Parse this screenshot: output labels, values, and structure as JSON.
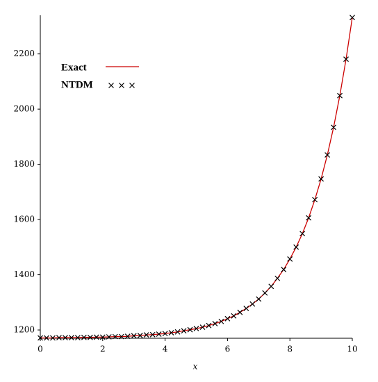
{
  "chart_data": {
    "type": "line",
    "xlabel": "x",
    "x": [
      0,
      0.2,
      0.4,
      0.6,
      0.8,
      1,
      1.2,
      1.4,
      1.6,
      1.8,
      2,
      2.2,
      2.4,
      2.6,
      2.8,
      3,
      3.2,
      3.4,
      3.6,
      3.8,
      4,
      4.2,
      4.4,
      4.6,
      4.8,
      5,
      5.2,
      5.4,
      5.6,
      5.8,
      6,
      6.2,
      6.4,
      6.6,
      6.8,
      7,
      7.2,
      7.4,
      7.6,
      7.8,
      8,
      8.2,
      8.4,
      8.6,
      8.8,
      9,
      9.2,
      9.4,
      9.6,
      9.8,
      10
    ],
    "series": [
      {
        "name": "Exact",
        "color": "#cc0000",
        "mark": "line",
        "values": [
          1171,
          1171,
          1171,
          1172,
          1172,
          1172,
          1172,
          1173,
          1173,
          1174,
          1174,
          1175,
          1176,
          1176,
          1177,
          1179,
          1180,
          1182,
          1183,
          1185,
          1187,
          1190,
          1193,
          1197,
          1201,
          1205,
          1210,
          1216,
          1223,
          1231,
          1241,
          1251,
          1264,
          1278,
          1294,
          1312,
          1334,
          1358,
          1387,
          1419,
          1457,
          1500,
          1549,
          1606,
          1672,
          1747,
          1834,
          1934,
          2049,
          2181,
          2332
        ]
      },
      {
        "name": "NTDM",
        "color": "#000000",
        "mark": "cross",
        "values": [
          1171,
          1171,
          1171,
          1172,
          1172,
          1172,
          1172,
          1173,
          1173,
          1174,
          1174,
          1175,
          1176,
          1176,
          1177,
          1179,
          1180,
          1182,
          1183,
          1185,
          1187,
          1190,
          1193,
          1197,
          1201,
          1205,
          1210,
          1216,
          1223,
          1231,
          1241,
          1251,
          1264,
          1278,
          1294,
          1312,
          1334,
          1358,
          1387,
          1419,
          1457,
          1500,
          1549,
          1606,
          1672,
          1747,
          1834,
          1934,
          2049,
          2181,
          2332
        ]
      }
    ],
    "xlim": [
      0,
      10
    ],
    "xticks": [
      0,
      2,
      4,
      6,
      8,
      10
    ],
    "ylim": [
      1170,
      2340
    ],
    "yticks": [
      1200,
      1400,
      1600,
      1800,
      2000,
      2200
    ]
  }
}
